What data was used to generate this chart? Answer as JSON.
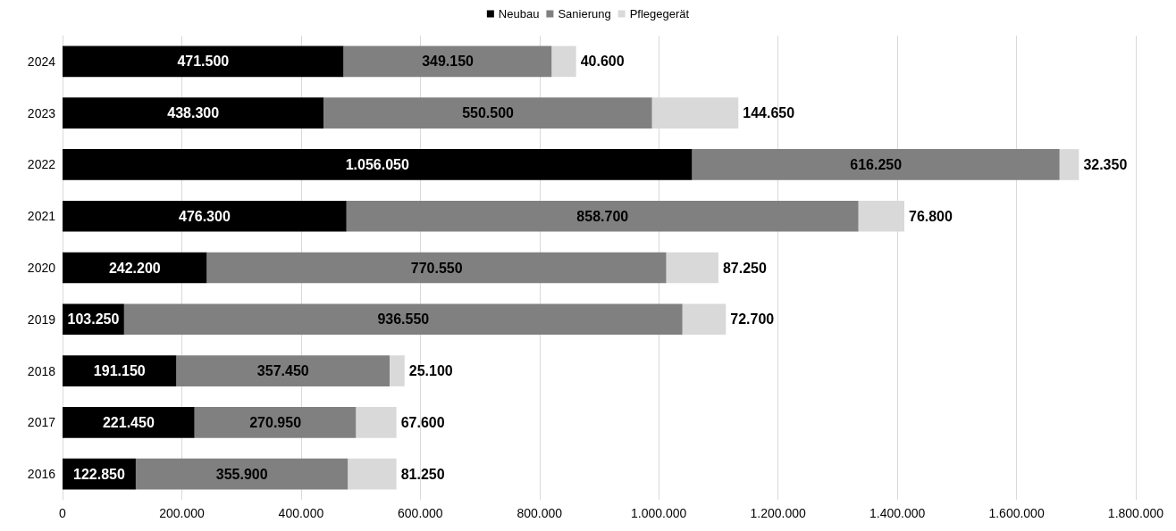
{
  "chart_data": {
    "type": "bar",
    "orientation": "horizontal",
    "stacked": true,
    "categories": [
      "2024",
      "2023",
      "2022",
      "2021",
      "2020",
      "2019",
      "2018",
      "2017",
      "2016"
    ],
    "series": [
      {
        "name": "Neubau",
        "color": "#000000",
        "values": [
          471500,
          438300,
          1056050,
          476300,
          242200,
          103250,
          191150,
          221450,
          122850
        ],
        "value_labels": [
          "471.500",
          "438.300",
          "1.056.050",
          "476.300",
          "242.200",
          "103.250",
          "191.150",
          "221.450",
          "122.850"
        ]
      },
      {
        "name": "Sanierung",
        "color": "#808080",
        "values": [
          349150,
          550500,
          616250,
          858700,
          770550,
          936550,
          357450,
          270950,
          355900
        ],
        "value_labels": [
          "349.150",
          "550.500",
          "616.250",
          "858.700",
          "770.550",
          "936.550",
          "357.450",
          "270.950",
          "355.900"
        ]
      },
      {
        "name": "Pflegegerät",
        "color": "#d9d9d9",
        "values": [
          40600,
          144650,
          32350,
          76800,
          87250,
          72700,
          25100,
          67600,
          81250
        ],
        "value_labels": [
          "40.600",
          "144.650",
          "32.350",
          "76.800",
          "87.250",
          "72.700",
          "25.100",
          "67.600",
          "81.250"
        ]
      }
    ],
    "xlim": [
      0,
      1800000
    ],
    "xticks": [
      {
        "value": 0,
        "label": "0"
      },
      {
        "value": 200000,
        "label": "200.000"
      },
      {
        "value": 400000,
        "label": "400.000"
      },
      {
        "value": 600000,
        "label": "600.000"
      },
      {
        "value": 800000,
        "label": "800.000"
      },
      {
        "value": 1000000,
        "label": "1.000.000"
      },
      {
        "value": 1200000,
        "label": "1.200.000"
      },
      {
        "value": 1400000,
        "label": "1.400.000"
      },
      {
        "value": 1600000,
        "label": "1.600.000"
      },
      {
        "value": 1800000,
        "label": "1.800.000"
      }
    ],
    "grid": "x",
    "legend": "top"
  }
}
